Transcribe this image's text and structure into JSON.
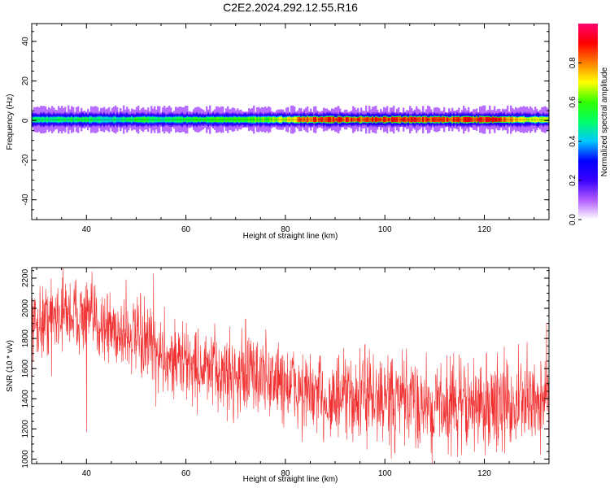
{
  "figure": {
    "title": "C2E2.2024.292.12.55.R16"
  },
  "chart_data": [
    {
      "type": "heatmap",
      "xlabel": "Height of straight line (km)",
      "ylabel": "Frequency (Hz)",
      "xlim": [
        29,
        133
      ],
      "ylim": [
        -50,
        49
      ],
      "xticks": [
        40,
        60,
        80,
        100,
        120
      ],
      "yticks": [
        -40,
        -20,
        0,
        20,
        40
      ],
      "band": {
        "center_hz": 0.5,
        "core_halfwidth_hz": 1.2,
        "outer_halfwidth_hz": 3.5,
        "faint_halfwidth_hz": 6,
        "amplitude_profile": [
          {
            "x": 30,
            "a": 0.5
          },
          {
            "x": 40,
            "a": 0.52
          },
          {
            "x": 44,
            "a": 0.45
          },
          {
            "x": 50,
            "a": 0.55
          },
          {
            "x": 55,
            "a": 0.5
          },
          {
            "x": 60,
            "a": 0.55
          },
          {
            "x": 70,
            "a": 0.6
          },
          {
            "x": 76,
            "a": 0.62
          },
          {
            "x": 80,
            "a": 0.7
          },
          {
            "x": 84,
            "a": 0.86
          },
          {
            "x": 90,
            "a": 0.88
          },
          {
            "x": 96,
            "a": 0.86
          },
          {
            "x": 100,
            "a": 0.9
          },
          {
            "x": 106,
            "a": 0.9
          },
          {
            "x": 110,
            "a": 0.84
          },
          {
            "x": 116,
            "a": 0.88
          },
          {
            "x": 122,
            "a": 0.92
          },
          {
            "x": 126,
            "a": 0.75
          },
          {
            "x": 133,
            "a": 0.65
          }
        ]
      },
      "colorbar": {
        "label": "Normalized spectral amplitude",
        "range": [
          0,
          1
        ],
        "ticks": [
          0.0,
          0.2,
          0.4,
          0.6,
          0.8
        ],
        "tick_labels": [
          "0.0",
          "0.2",
          "0.4",
          "0.6",
          "0.8"
        ],
        "colormap": "rainbow",
        "colors": [
          "#ffffff",
          "#b05cff",
          "#3a00ff",
          "#0000ff",
          "#00c8ff",
          "#00ff66",
          "#33ff00",
          "#ffff00",
          "#ff8000",
          "#ff0000",
          "#ff0070"
        ]
      }
    },
    {
      "type": "line",
      "xlabel": "Height of straight line (km)",
      "ylabel": "SNR (10 * v/v)",
      "xlim": [
        29,
        133
      ],
      "ylim": [
        970,
        2270
      ],
      "xticks": [
        40,
        60,
        80,
        100,
        120
      ],
      "yticks": [
        1000,
        1200,
        1400,
        1600,
        1800,
        2000,
        2200
      ],
      "color": "#f03030",
      "trend": [
        {
          "x": 29,
          "y": 1880
        },
        {
          "x": 35,
          "y": 1980
        },
        {
          "x": 40,
          "y": 1940
        },
        {
          "x": 45,
          "y": 1870
        },
        {
          "x": 50,
          "y": 1800
        },
        {
          "x": 55,
          "y": 1700
        },
        {
          "x": 60,
          "y": 1640
        },
        {
          "x": 65,
          "y": 1580
        },
        {
          "x": 70,
          "y": 1560
        },
        {
          "x": 75,
          "y": 1560
        },
        {
          "x": 80,
          "y": 1500
        },
        {
          "x": 85,
          "y": 1420
        },
        {
          "x": 90,
          "y": 1390
        },
        {
          "x": 95,
          "y": 1400
        },
        {
          "x": 100,
          "y": 1390
        },
        {
          "x": 105,
          "y": 1380
        },
        {
          "x": 110,
          "y": 1370
        },
        {
          "x": 115,
          "y": 1360
        },
        {
          "x": 120,
          "y": 1360
        },
        {
          "x": 125,
          "y": 1360
        },
        {
          "x": 133,
          "y": 1400
        }
      ],
      "noise_amplitude": [
        {
          "x": 29,
          "y": 140
        },
        {
          "x": 60,
          "y": 150
        },
        {
          "x": 90,
          "y": 170
        },
        {
          "x": 133,
          "y": 180
        }
      ],
      "spikes": [
        {
          "x": 40.0,
          "y": 1180
        },
        {
          "x": 33.0,
          "y": 1550
        },
        {
          "x": 53.5,
          "y": 2230
        },
        {
          "x": 54.0,
          "y": 1350
        },
        {
          "x": 109.5,
          "y": 970
        },
        {
          "x": 132.5,
          "y": 1900
        },
        {
          "x": 48.0,
          "y": 2190
        },
        {
          "x": 72.0,
          "y": 1930
        },
        {
          "x": 96.0,
          "y": 1760
        },
        {
          "x": 102.0,
          "y": 1040
        },
        {
          "x": 118.0,
          "y": 1050
        }
      ]
    }
  ]
}
